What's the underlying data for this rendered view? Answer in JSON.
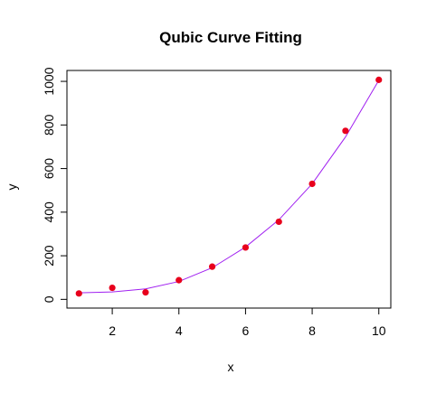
{
  "chart_data": {
    "type": "scatter",
    "title": "Qubic Curve Fitting",
    "xlabel": "x",
    "ylabel": "y",
    "xlim": [
      0.64,
      10.36
    ],
    "ylim": [
      -40,
      1050
    ],
    "x_ticks": [
      2,
      4,
      6,
      8,
      10
    ],
    "y_ticks": [
      0,
      200,
      400,
      600,
      800,
      1000
    ],
    "grid": false,
    "colors": {
      "points": "#e8001c",
      "fit_line": "#a020f0",
      "axes": "#000000"
    },
    "series": [
      {
        "type": "points",
        "x": [
          1,
          2,
          3,
          4,
          5,
          6,
          7,
          8,
          9,
          10
        ],
        "y": [
          27,
          53,
          32,
          88,
          150,
          238,
          356,
          530,
          773,
          1007
        ]
      },
      {
        "type": "line",
        "x": [
          1,
          2,
          3,
          4,
          5,
          6,
          7,
          8,
          9,
          10
        ],
        "y": [
          30,
          34,
          48,
          82,
          145,
          240,
          365,
          530,
          745,
          1005
        ]
      }
    ]
  }
}
